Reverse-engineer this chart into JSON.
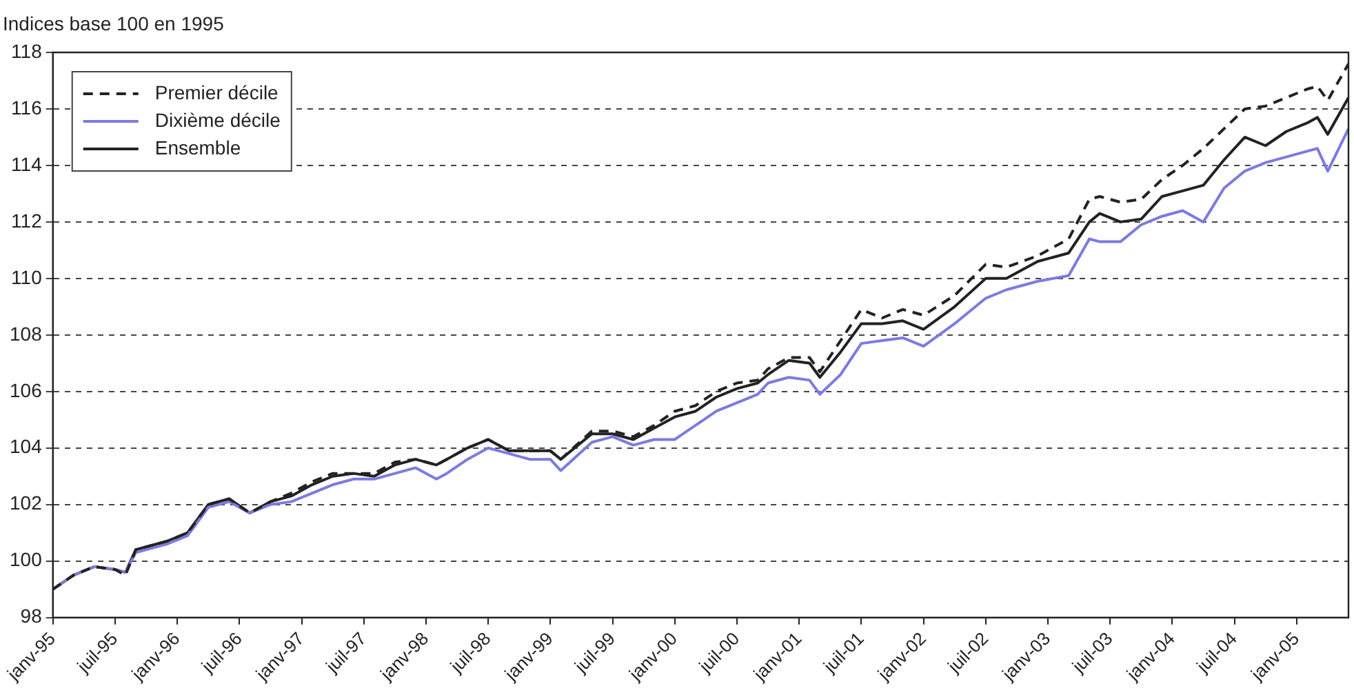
{
  "chart_data": {
    "type": "line",
    "ylabel": "Indices base 100 en 1995",
    "x": [
      "1995-01",
      "1995-03",
      "1995-05",
      "1995-07",
      "1995-08",
      "1995-09",
      "1995-12",
      "1996-02",
      "1996-04",
      "1996-06",
      "1996-08",
      "1996-10",
      "1996-12",
      "1997-02",
      "1997-04",
      "1997-06",
      "1997-08",
      "1997-10",
      "1997-12",
      "1998-02",
      "1998-03",
      "1998-05",
      "1998-07",
      "1998-09",
      "1998-11",
      "1999-01",
      "1999-02",
      "1999-05",
      "1999-07",
      "1999-09",
      "1999-11",
      "2000-01",
      "2000-03",
      "2000-05",
      "2000-07",
      "2000-09",
      "2000-10",
      "2000-12",
      "2001-02",
      "2001-03",
      "2001-05",
      "2001-07",
      "2001-09",
      "2001-11",
      "2002-01",
      "2002-04",
      "2002-07",
      "2002-09",
      "2002-12",
      "2003-03",
      "2003-05",
      "2003-06",
      "2003-08",
      "2003-10",
      "2003-12",
      "2004-02",
      "2004-04",
      "2004-06",
      "2004-08",
      "2004-10",
      "2004-12",
      "2005-02",
      "2005-03",
      "2005-04",
      "2005-06"
    ],
    "xlim": [
      "1995-01",
      "2005-06"
    ],
    "xticks": [
      {
        "value": "1995-01",
        "label": "janv-95"
      },
      {
        "value": "1995-07",
        "label": "juil-95"
      },
      {
        "value": "1996-01",
        "label": "janv-96"
      },
      {
        "value": "1996-07",
        "label": "juil-96"
      },
      {
        "value": "1997-01",
        "label": "janv-97"
      },
      {
        "value": "1997-07",
        "label": "juil-97"
      },
      {
        "value": "1998-01",
        "label": "janv-98"
      },
      {
        "value": "1998-07",
        "label": "juil-98"
      },
      {
        "value": "1999-01",
        "label": "janv-99"
      },
      {
        "value": "1999-07",
        "label": "juil-99"
      },
      {
        "value": "2000-01",
        "label": "janv-00"
      },
      {
        "value": "2000-07",
        "label": "juil-00"
      },
      {
        "value": "2001-01",
        "label": "janv-01"
      },
      {
        "value": "2001-07",
        "label": "juil-01"
      },
      {
        "value": "2002-01",
        "label": "janv-02"
      },
      {
        "value": "2002-07",
        "label": "juil-02"
      },
      {
        "value": "2003-01",
        "label": "janv-03"
      },
      {
        "value": "2003-07",
        "label": "juil-03"
      },
      {
        "value": "2004-01",
        "label": "janv-04"
      },
      {
        "value": "2004-07",
        "label": "juil-04"
      },
      {
        "value": "2005-01",
        "label": "janv-05"
      }
    ],
    "ylim": [
      98,
      118
    ],
    "yticks": [
      98,
      100,
      102,
      104,
      106,
      108,
      110,
      112,
      114,
      116,
      118
    ],
    "grid": "y",
    "legend": "top left",
    "marker": "none",
    "series": [
      {
        "name": "Premier décile",
        "color": "#222222",
        "line_style": "dashed",
        "values": [
          99.0,
          99.5,
          99.8,
          99.7,
          99.5,
          100.4,
          100.7,
          101.0,
          102.0,
          102.2,
          101.7,
          102.1,
          102.4,
          102.8,
          103.1,
          103.1,
          103.1,
          103.5,
          103.6,
          103.4,
          103.6,
          104.0,
          104.3,
          103.9,
          103.9,
          103.9,
          103.6,
          104.6,
          104.6,
          104.4,
          104.8,
          105.3,
          105.5,
          106.0,
          106.3,
          106.4,
          106.8,
          107.2,
          107.2,
          106.7,
          107.8,
          108.9,
          108.6,
          108.9,
          108.7,
          109.4,
          110.5,
          110.4,
          110.8,
          111.4,
          112.8,
          112.9,
          112.7,
          112.8,
          113.5,
          114.0,
          114.6,
          115.3,
          116.0,
          116.1,
          116.4,
          116.7,
          116.8,
          116.3,
          117.6
        ]
      },
      {
        "name": "Dixième décile",
        "color": "#7b7be0",
        "line_style": "solid",
        "values": [
          99.0,
          99.5,
          99.8,
          99.7,
          99.6,
          100.3,
          100.6,
          100.9,
          101.9,
          102.1,
          101.7,
          102.0,
          102.1,
          102.4,
          102.7,
          102.9,
          102.9,
          103.1,
          103.3,
          102.9,
          103.1,
          103.6,
          104.0,
          103.8,
          103.6,
          103.6,
          103.2,
          104.2,
          104.4,
          104.1,
          104.3,
          104.3,
          104.8,
          105.3,
          105.6,
          105.9,
          106.3,
          106.5,
          106.4,
          105.9,
          106.6,
          107.7,
          107.8,
          107.9,
          107.6,
          108.4,
          109.3,
          109.6,
          109.9,
          110.1,
          111.4,
          111.3,
          111.3,
          111.9,
          112.2,
          112.4,
          112.0,
          113.2,
          113.8,
          114.1,
          114.3,
          114.5,
          114.6,
          113.8,
          115.3
        ]
      },
      {
        "name": "Ensemble",
        "color": "#222222",
        "line_style": "solid",
        "values": [
          99.0,
          99.5,
          99.8,
          99.7,
          99.6,
          100.4,
          100.7,
          101.0,
          102.0,
          102.2,
          101.7,
          102.1,
          102.3,
          102.7,
          103.0,
          103.1,
          103.0,
          103.4,
          103.6,
          103.4,
          103.6,
          104.0,
          104.3,
          103.9,
          103.9,
          103.9,
          103.6,
          104.5,
          104.5,
          104.3,
          104.7,
          105.1,
          105.3,
          105.8,
          106.1,
          106.3,
          106.6,
          107.1,
          107.0,
          106.5,
          107.4,
          108.4,
          108.4,
          108.5,
          108.2,
          109.0,
          110.0,
          110.0,
          110.6,
          110.9,
          112.0,
          112.3,
          112.0,
          112.1,
          112.9,
          113.1,
          113.3,
          114.2,
          115.0,
          114.7,
          115.2,
          115.5,
          115.7,
          115.1,
          116.4
        ]
      }
    ]
  }
}
